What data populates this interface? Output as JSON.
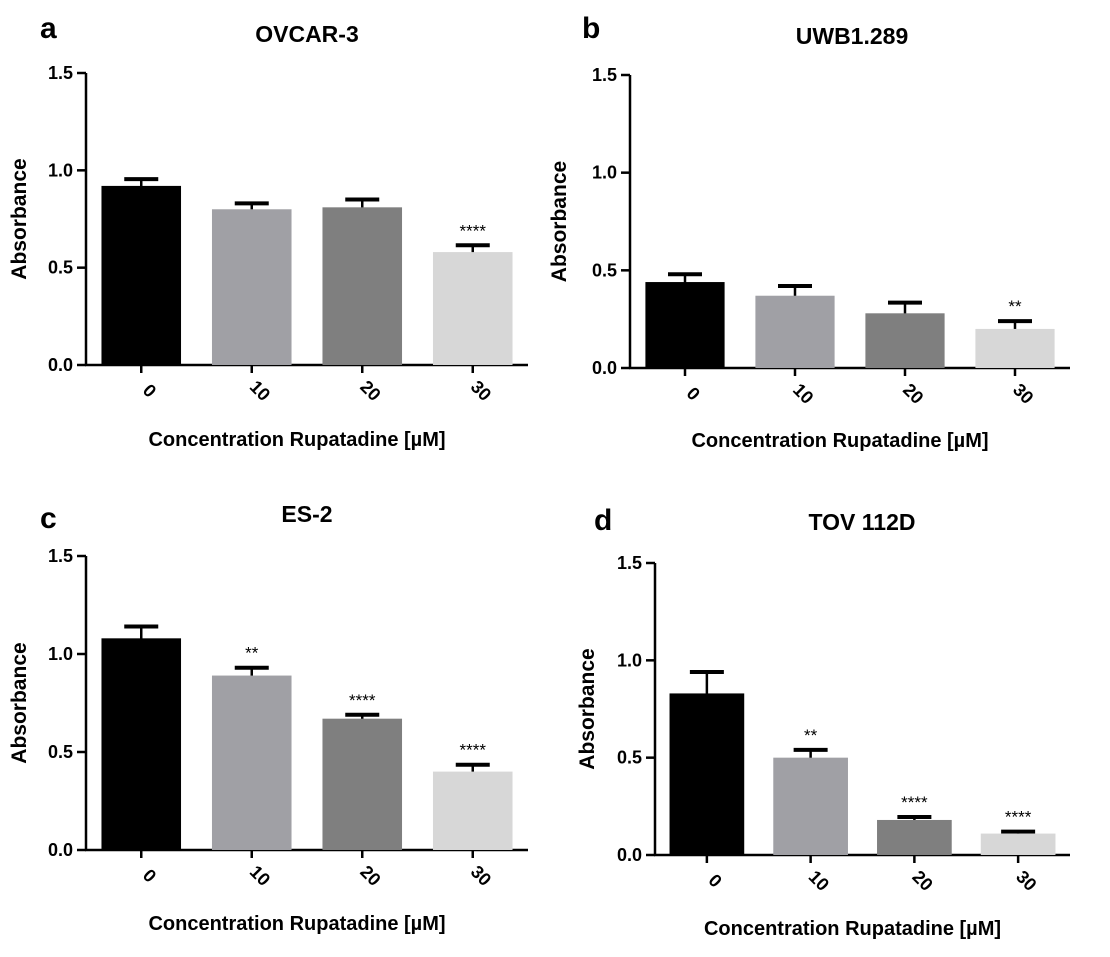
{
  "figure": {
    "colors": [
      "#000000",
      "#a0a0a5",
      "#7f7f7f",
      "#d7d7d7"
    ]
  },
  "chart_data": [
    {
      "panel": "a",
      "type": "bar",
      "title": "OVCAR-3",
      "xlabel": "Concentration Rupatadine [µM]",
      "ylabel": "Absorbance",
      "categories": [
        "0",
        "10",
        "20",
        "30"
      ],
      "values": [
        0.92,
        0.8,
        0.81,
        0.58
      ],
      "errors": [
        0.035,
        0.03,
        0.04,
        0.035
      ],
      "significance": [
        "",
        "",
        "",
        "****"
      ],
      "ylim": [
        0,
        1.5
      ],
      "yticks": [
        "0.0",
        "0.5",
        "1.0",
        "1.5"
      ]
    },
    {
      "panel": "b",
      "type": "bar",
      "title": "UWB1.289",
      "xlabel": "Concentration Rupatadine [µM]",
      "ylabel": "Absorbance",
      "categories": [
        "0",
        "10",
        "20",
        "30"
      ],
      "values": [
        0.44,
        0.37,
        0.28,
        0.2
      ],
      "errors": [
        0.04,
        0.05,
        0.055,
        0.04
      ],
      "significance": [
        "",
        "",
        "",
        "**"
      ],
      "ylim": [
        0,
        1.5
      ],
      "yticks": [
        "0.0",
        "0.5",
        "1.0",
        "1.5"
      ]
    },
    {
      "panel": "c",
      "type": "bar",
      "title": "ES-2",
      "xlabel": "Concentration Rupatadine [µM]",
      "ylabel": "Absorbance",
      "categories": [
        "0",
        "10",
        "20",
        "30"
      ],
      "values": [
        1.08,
        0.89,
        0.67,
        0.4
      ],
      "errors": [
        0.06,
        0.04,
        0.02,
        0.035
      ],
      "significance": [
        "",
        "**",
        "****",
        "****"
      ],
      "ylim": [
        0,
        1.5
      ],
      "yticks": [
        "0.0",
        "0.5",
        "1.0",
        "1.5"
      ]
    },
    {
      "panel": "d",
      "type": "bar",
      "title": "TOV 112D",
      "xlabel": "Concentration Rupatadine [µM]",
      "ylabel": "Absorbance",
      "categories": [
        "0",
        "10",
        "20",
        "30"
      ],
      "values": [
        0.83,
        0.5,
        0.18,
        0.11
      ],
      "errors": [
        0.11,
        0.04,
        0.015,
        0.01
      ],
      "significance": [
        "",
        "**",
        "****",
        "****"
      ],
      "ylim": [
        0,
        1.5
      ],
      "yticks": [
        "0.0",
        "0.5",
        "1.0",
        "1.5"
      ]
    }
  ]
}
